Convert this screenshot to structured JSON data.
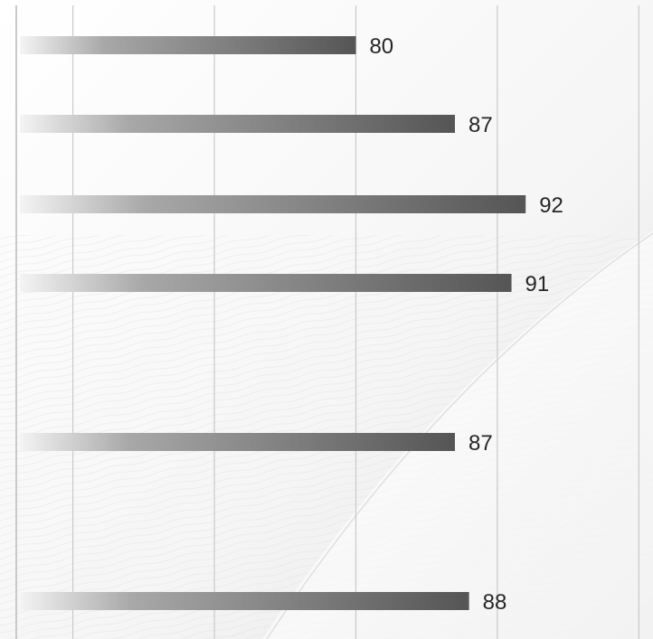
{
  "chart_data": {
    "type": "bar",
    "orientation": "horizontal",
    "categories": [
      "",
      "",
      "",
      "",
      "",
      ""
    ],
    "values": [
      80,
      87,
      92,
      91,
      87,
      88
    ],
    "data_labels": [
      "80",
      "87",
      "92",
      "91",
      "87",
      "88"
    ],
    "title": "",
    "xlabel": "",
    "ylabel": "",
    "xlim": [
      56,
      101
    ],
    "gridlines": [
      60,
      70,
      80,
      90,
      100
    ],
    "grid": true,
    "legend": "none",
    "bar_gradient": [
      "#f4f4f4",
      "#a8a8a8",
      "#555555"
    ],
    "gridline_color": "#c9c9c9",
    "label_color": "#262626",
    "background": [
      "#ffffff",
      "#ebebeb"
    ]
  }
}
